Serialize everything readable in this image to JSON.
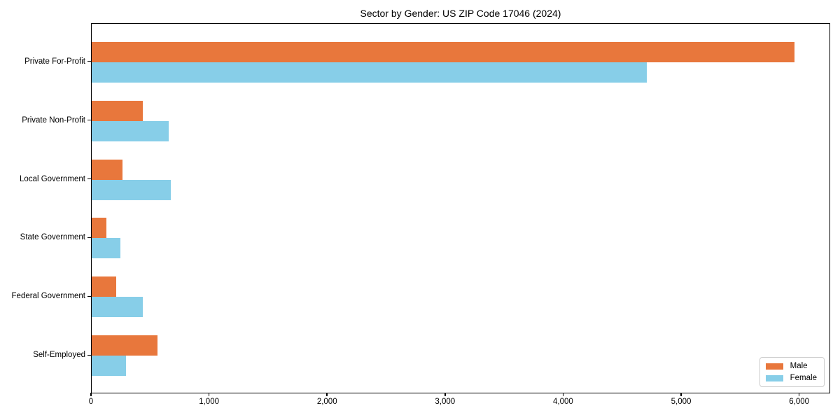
{
  "figure_title": "Sector by Gender: US ZIP Code 17046 (2024)",
  "chart_data": {
    "type": "bar",
    "orientation": "horizontal",
    "title": "Sector by Gender: US ZIP Code 17046 (2024)",
    "categories": [
      "Private For-Profit",
      "Private Non-Profit",
      "Local Government",
      "State Government",
      "Federal Government",
      "Self-Employed"
    ],
    "series": [
      {
        "name": "Male",
        "color": "#E8773C",
        "values": [
          5955,
          430,
          260,
          125,
          210,
          555
        ]
      },
      {
        "name": "Female",
        "color": "#87CEE8",
        "values": [
          4700,
          650,
          670,
          245,
          430,
          290
        ]
      }
    ],
    "xlabel": "",
    "ylabel": "",
    "xlim": [
      0,
      6263
    ],
    "xticks": [
      0,
      1000,
      2000,
      3000,
      4000,
      5000,
      6000
    ],
    "xtick_labels": [
      "0",
      "1,000",
      "2,000",
      "3,000",
      "4,000",
      "5,000",
      "6,000"
    ],
    "grid": false,
    "legend_position": "lower-right",
    "spine_color": "#000000",
    "background_color": "#ffffff"
  }
}
